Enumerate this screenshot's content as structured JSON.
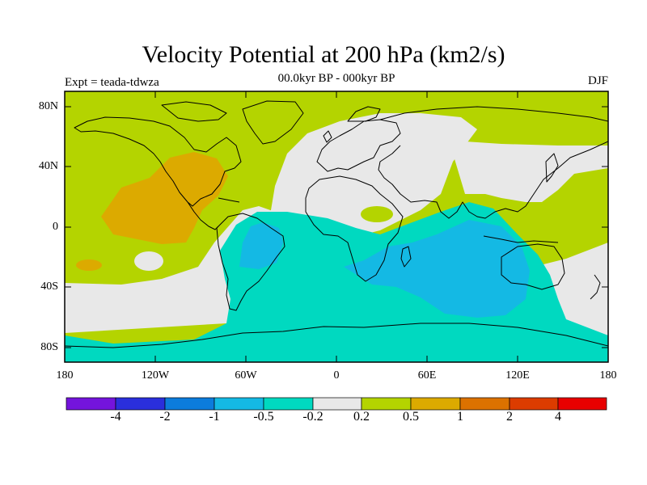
{
  "header": {
    "title": "Velocity Potential at 200 hPa (km2/s)",
    "subtitle": "00.0kyr BP - 000kyr BP",
    "left_string": "Expt = teada-tdwza",
    "right_string": "DJF"
  },
  "axes": {
    "lat_labels": [
      "80N",
      "40N",
      "0",
      "40S",
      "80S"
    ],
    "lon_labels": [
      "180",
      "120W",
      "60W",
      "0",
      "60E",
      "120E",
      "180"
    ]
  },
  "colorbar": {
    "labels": [
      "-4",
      "-2",
      "-1",
      "-0.5",
      "-0.2",
      "0.2",
      "0.5",
      "1",
      "2",
      "4"
    ],
    "colors": [
      "#7414dc",
      "#2a2fdc",
      "#0c7cdc",
      "#14b9e4",
      "#00d9c0",
      "#e8e8e8",
      "#b4d400",
      "#dcaa00",
      "#dc7200",
      "#dc3c00",
      "#e80000"
    ]
  },
  "colors": {
    "ocean_bg": "#b4d400",
    "neutral": "#e8e8e8",
    "positive_05": "#dcaa00",
    "negative_02": "#00d9c0",
    "negative_05": "#14b9e4"
  }
}
